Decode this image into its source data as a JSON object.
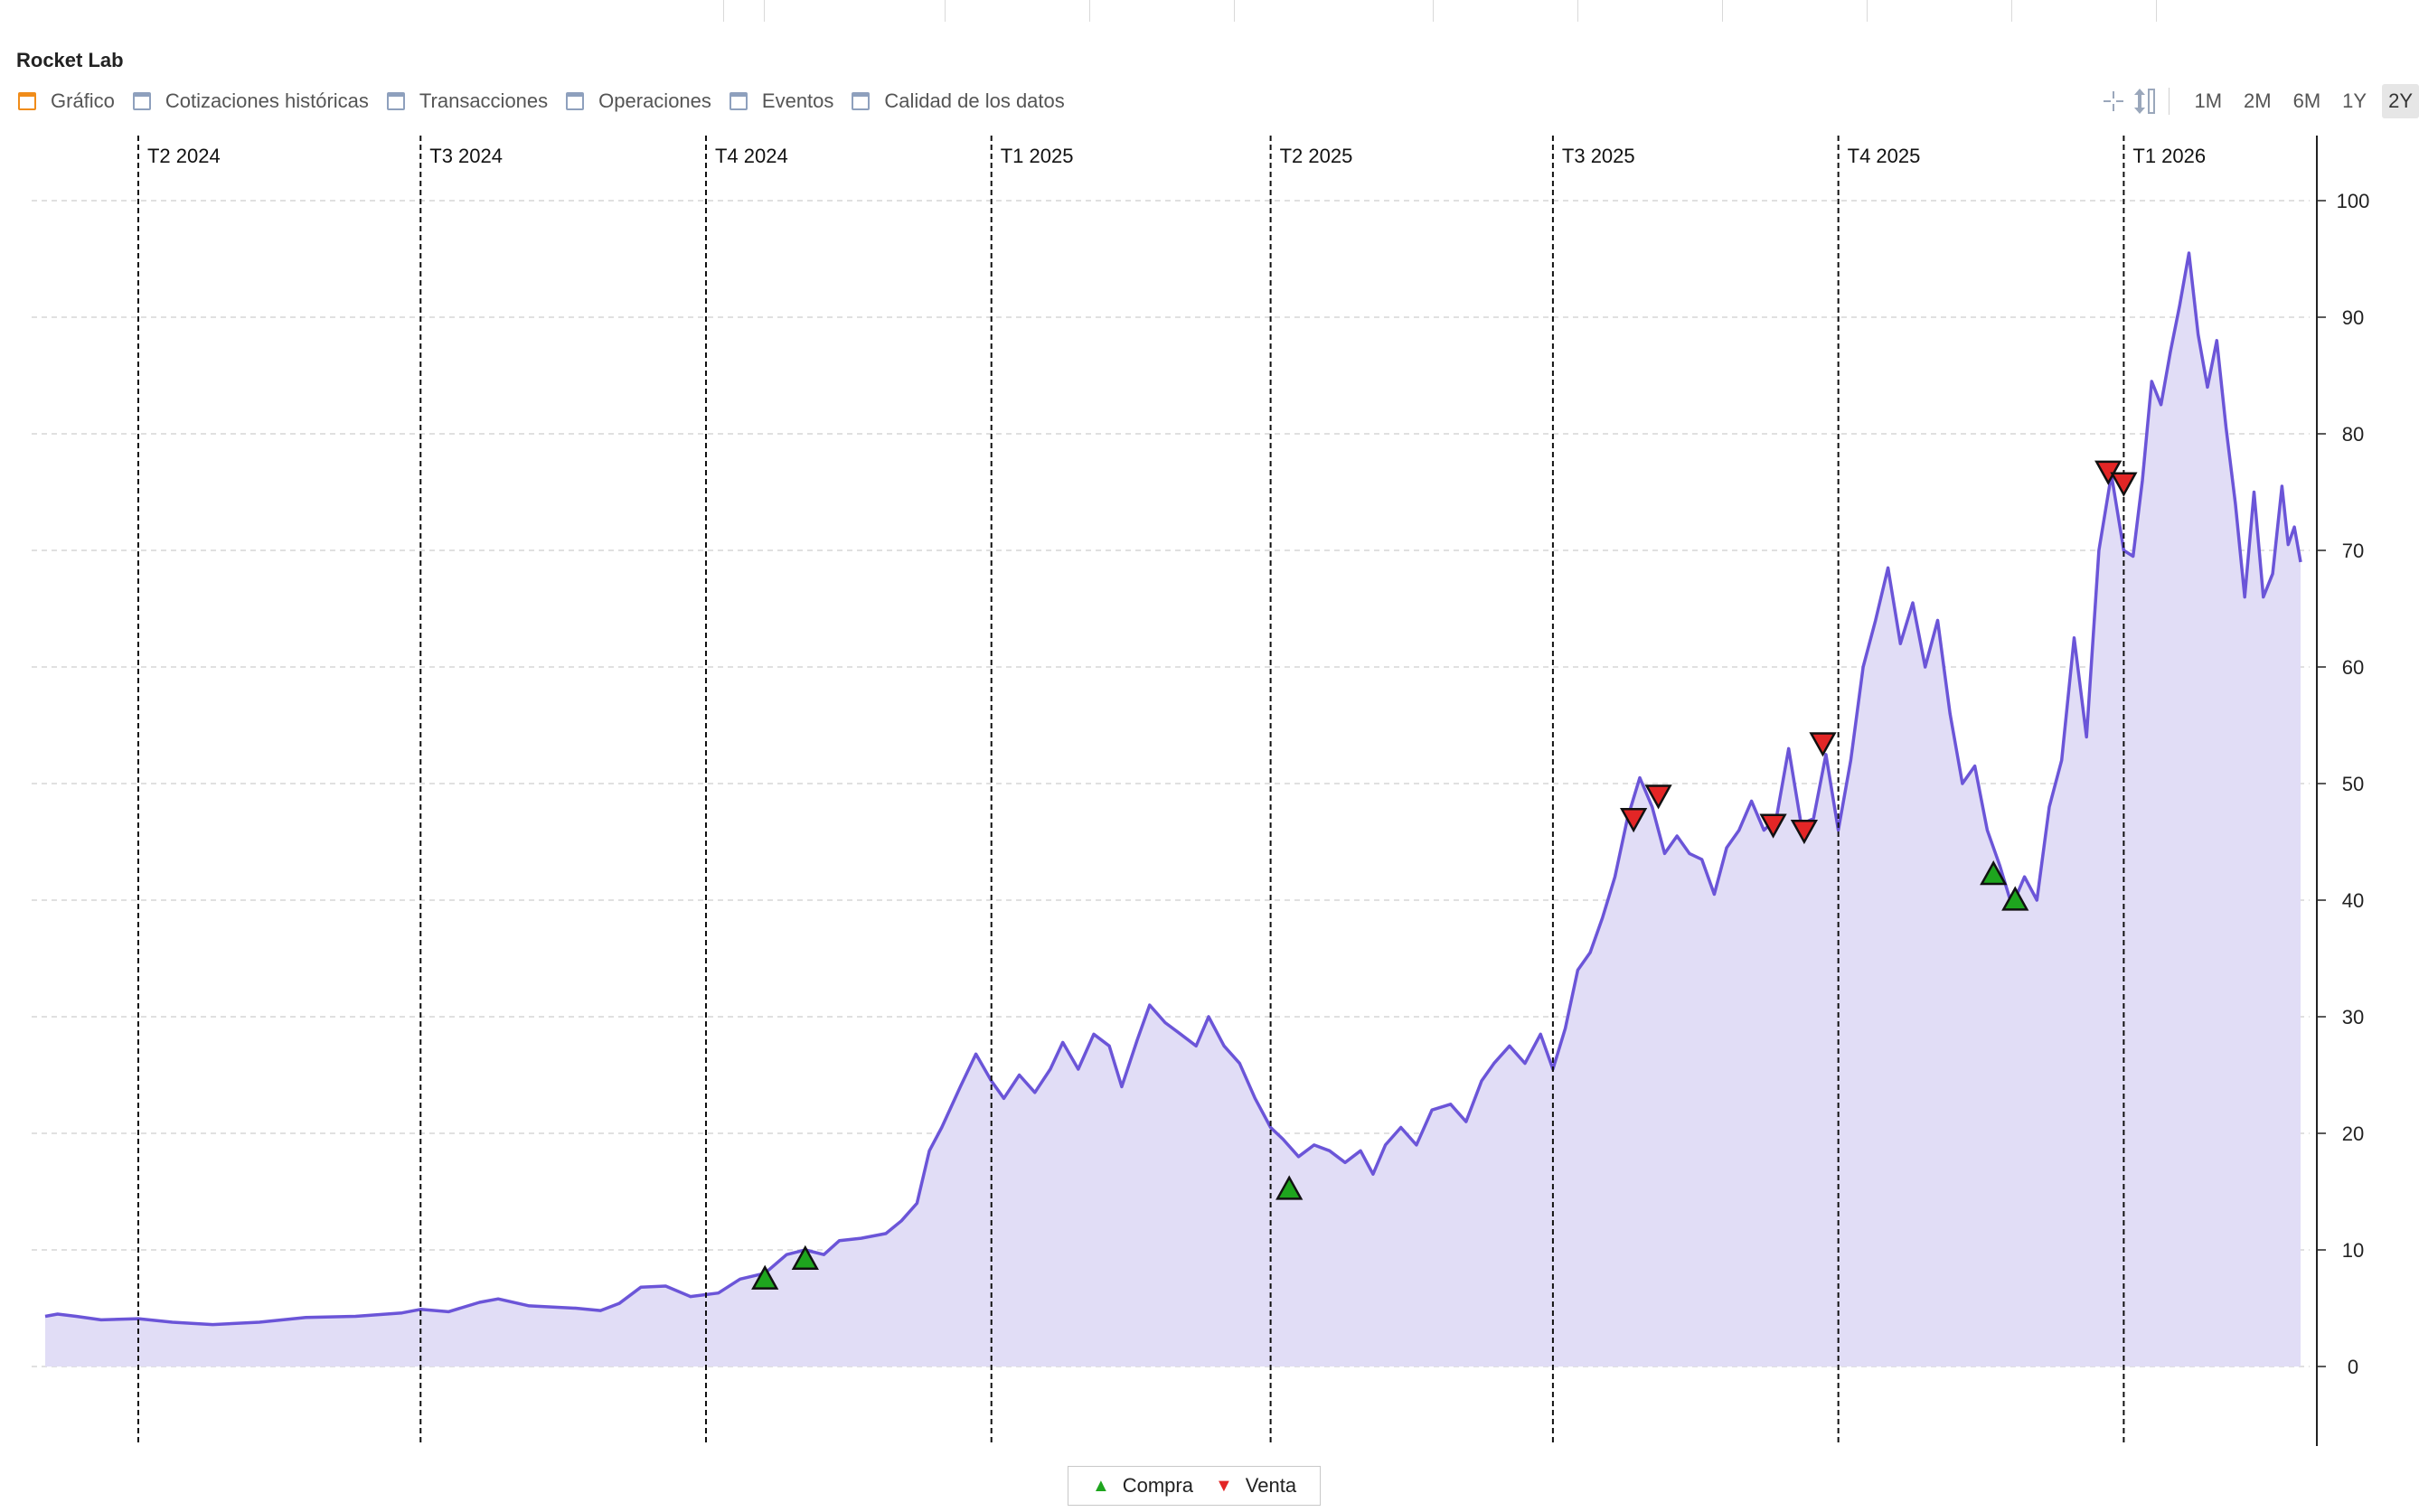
{
  "header": {
    "title": "Rocket Lab"
  },
  "tabs": [
    {
      "label": "Gráfico",
      "active": true
    },
    {
      "label": "Cotizaciones históricas",
      "active": false
    },
    {
      "label": "Transacciones",
      "active": false
    },
    {
      "label": "Operaciones",
      "active": false
    },
    {
      "label": "Eventos",
      "active": false
    },
    {
      "label": "Calidad de los datos",
      "active": false
    }
  ],
  "toolbar": {
    "icons": [
      "crosshair-icon",
      "vertical-resize-icon"
    ],
    "ranges": [
      {
        "label": "1M",
        "active": false
      },
      {
        "label": "2M",
        "active": false
      },
      {
        "label": "6M",
        "active": false
      },
      {
        "label": "1Y",
        "active": false
      },
      {
        "label": "2Y",
        "active": true
      }
    ]
  },
  "legend": {
    "buy_label": "Compra",
    "sell_label": "Venta"
  },
  "colors": {
    "line": "#6b55d8",
    "fill": "#e1ddf6",
    "buy": "#1ea51e",
    "sell": "#e32626",
    "active_tab_icon": "#f08c1a",
    "inactive_tab_icon": "#8ea0bd"
  },
  "chart_data": {
    "type": "area",
    "title": "",
    "xlabel": "",
    "ylabel": "",
    "x_range": [
      "2024-03-02",
      "2026-02-27"
    ],
    "ylim": [
      0,
      100
    ],
    "y_ticks": [
      0,
      10,
      20,
      30,
      40,
      50,
      60,
      70,
      80,
      90,
      100
    ],
    "y_axis_position": "right",
    "grid": true,
    "legend_position": "bottom-center",
    "quarter_markers": [
      {
        "label": "T2 2024",
        "date": "2024-04-01"
      },
      {
        "label": "T3 2024",
        "date": "2024-07-01"
      },
      {
        "label": "T4 2024",
        "date": "2024-10-01"
      },
      {
        "label": "T1 2025",
        "date": "2025-01-01"
      },
      {
        "label": "T2 2025",
        "date": "2025-04-01"
      },
      {
        "label": "T3 2025",
        "date": "2025-07-01"
      },
      {
        "label": "T4 2025",
        "date": "2025-10-01"
      },
      {
        "label": "T1 2026",
        "date": "2026-01-01"
      }
    ],
    "series": [
      {
        "points": [
          [
            "2024-03-02",
            4.3
          ],
          [
            "2024-03-06",
            4.5
          ],
          [
            "2024-03-12",
            4.3
          ],
          [
            "2024-03-20",
            4.0
          ],
          [
            "2024-04-01",
            4.1
          ],
          [
            "2024-04-12",
            3.8
          ],
          [
            "2024-04-25",
            3.6
          ],
          [
            "2024-05-10",
            3.8
          ],
          [
            "2024-05-25",
            4.2
          ],
          [
            "2024-06-10",
            4.3
          ],
          [
            "2024-06-25",
            4.6
          ],
          [
            "2024-07-01",
            4.9
          ],
          [
            "2024-07-10",
            4.7
          ],
          [
            "2024-07-20",
            5.5
          ],
          [
            "2024-07-26",
            5.8
          ],
          [
            "2024-08-05",
            5.2
          ],
          [
            "2024-08-20",
            5.0
          ],
          [
            "2024-08-28",
            4.8
          ],
          [
            "2024-09-03",
            5.4
          ],
          [
            "2024-09-10",
            6.8
          ],
          [
            "2024-09-18",
            6.9
          ],
          [
            "2024-09-26",
            6.0
          ],
          [
            "2024-10-05",
            6.3
          ],
          [
            "2024-10-12",
            7.5
          ],
          [
            "2024-10-20",
            8.0
          ],
          [
            "2024-10-27",
            9.6
          ],
          [
            "2024-11-02",
            10.0
          ],
          [
            "2024-11-08",
            9.6
          ],
          [
            "2024-11-13",
            10.8
          ],
          [
            "2024-11-20",
            11.0
          ],
          [
            "2024-11-28",
            11.4
          ],
          [
            "2024-12-03",
            12.5
          ],
          [
            "2024-12-08",
            14.0
          ],
          [
            "2024-12-12",
            18.5
          ],
          [
            "2024-12-16",
            20.5
          ],
          [
            "2024-12-22",
            24.0
          ],
          [
            "2024-12-27",
            26.8
          ],
          [
            "2025-01-01",
            24.5
          ],
          [
            "2025-01-05",
            23.0
          ],
          [
            "2025-01-10",
            25.0
          ],
          [
            "2025-01-15",
            23.5
          ],
          [
            "2025-01-20",
            25.5
          ],
          [
            "2025-01-24",
            27.8
          ],
          [
            "2025-01-29",
            25.5
          ],
          [
            "2025-02-03",
            28.5
          ],
          [
            "2025-02-08",
            27.5
          ],
          [
            "2025-02-12",
            24.0
          ],
          [
            "2025-02-17",
            28.0
          ],
          [
            "2025-02-21",
            31.0
          ],
          [
            "2025-02-26",
            29.5
          ],
          [
            "2025-03-03",
            28.5
          ],
          [
            "2025-03-08",
            27.5
          ],
          [
            "2025-03-12",
            30.0
          ],
          [
            "2025-03-17",
            27.5
          ],
          [
            "2025-03-22",
            26.0
          ],
          [
            "2025-03-27",
            23.0
          ],
          [
            "2025-04-01",
            20.5
          ],
          [
            "2025-04-05",
            19.5
          ],
          [
            "2025-04-10",
            18.0
          ],
          [
            "2025-04-15",
            19.0
          ],
          [
            "2025-04-20",
            18.5
          ],
          [
            "2025-04-25",
            17.5
          ],
          [
            "2025-04-30",
            18.5
          ],
          [
            "2025-05-04",
            16.5
          ],
          [
            "2025-05-08",
            19.0
          ],
          [
            "2025-05-13",
            20.5
          ],
          [
            "2025-05-18",
            19.0
          ],
          [
            "2025-05-23",
            22.0
          ],
          [
            "2025-05-29",
            22.5
          ],
          [
            "2025-06-03",
            21.0
          ],
          [
            "2025-06-08",
            24.5
          ],
          [
            "2025-06-12",
            26.0
          ],
          [
            "2025-06-17",
            27.5
          ],
          [
            "2025-06-22",
            26.0
          ],
          [
            "2025-06-27",
            28.5
          ],
          [
            "2025-07-01",
            25.5
          ],
          [
            "2025-07-05",
            29.0
          ],
          [
            "2025-07-09",
            34.0
          ],
          [
            "2025-07-13",
            35.5
          ],
          [
            "2025-07-17",
            38.5
          ],
          [
            "2025-07-21",
            42.0
          ],
          [
            "2025-07-25",
            47.0
          ],
          [
            "2025-07-29",
            50.5
          ],
          [
            "2025-08-02",
            48.0
          ],
          [
            "2025-08-06",
            44.0
          ],
          [
            "2025-08-10",
            45.5
          ],
          [
            "2025-08-14",
            44.0
          ],
          [
            "2025-08-18",
            43.5
          ],
          [
            "2025-08-22",
            40.5
          ],
          [
            "2025-08-26",
            44.5
          ],
          [
            "2025-08-30",
            46.0
          ],
          [
            "2025-09-03",
            48.5
          ],
          [
            "2025-09-07",
            46.0
          ],
          [
            "2025-09-11",
            47.0
          ],
          [
            "2025-09-15",
            53.0
          ],
          [
            "2025-09-19",
            46.5
          ],
          [
            "2025-09-23",
            47.0
          ],
          [
            "2025-09-27",
            52.5
          ],
          [
            "2025-10-01",
            46.0
          ],
          [
            "2025-10-05",
            52.0
          ],
          [
            "2025-10-09",
            60.0
          ],
          [
            "2025-10-13",
            64.0
          ],
          [
            "2025-10-17",
            68.5
          ],
          [
            "2025-10-21",
            62.0
          ],
          [
            "2025-10-25",
            65.5
          ],
          [
            "2025-10-29",
            60.0
          ],
          [
            "2025-11-02",
            64.0
          ],
          [
            "2025-11-06",
            56.0
          ],
          [
            "2025-11-10",
            50.0
          ],
          [
            "2025-11-14",
            51.5
          ],
          [
            "2025-11-18",
            46.0
          ],
          [
            "2025-11-22",
            43.0
          ],
          [
            "2025-11-26",
            39.5
          ],
          [
            "2025-11-30",
            42.0
          ],
          [
            "2025-12-04",
            40.0
          ],
          [
            "2025-12-08",
            48.0
          ],
          [
            "2025-12-12",
            52.0
          ],
          [
            "2025-12-16",
            62.5
          ],
          [
            "2025-12-20",
            54.0
          ],
          [
            "2025-12-24",
            70.0
          ],
          [
            "2025-12-28",
            76.5
          ],
          [
            "2026-01-01",
            70.0
          ],
          [
            "2026-01-04",
            69.5
          ],
          [
            "2026-01-07",
            76.0
          ],
          [
            "2026-01-10",
            84.5
          ],
          [
            "2026-01-13",
            82.5
          ],
          [
            "2026-01-16",
            87.0
          ],
          [
            "2026-01-19",
            91.0
          ],
          [
            "2026-01-22",
            95.5
          ],
          [
            "2026-01-25",
            88.5
          ],
          [
            "2026-01-28",
            84.0
          ],
          [
            "2026-01-31",
            88.0
          ],
          [
            "2026-02-03",
            80.5
          ],
          [
            "2026-02-06",
            74.0
          ],
          [
            "2026-02-09",
            66.0
          ],
          [
            "2026-02-12",
            75.0
          ],
          [
            "2026-02-15",
            66.0
          ],
          [
            "2026-02-18",
            68.0
          ],
          [
            "2026-02-21",
            75.5
          ],
          [
            "2026-02-23",
            70.5
          ],
          [
            "2026-02-25",
            72.0
          ],
          [
            "2026-02-27",
            69.0
          ]
        ]
      }
    ],
    "trades": [
      {
        "type": "buy",
        "date": "2024-10-20",
        "value": 7.5
      },
      {
        "type": "buy",
        "date": "2024-11-02",
        "value": 9.2
      },
      {
        "type": "buy",
        "date": "2025-04-07",
        "value": 15.2
      },
      {
        "type": "sell",
        "date": "2025-07-27",
        "value": 47.0
      },
      {
        "type": "sell",
        "date": "2025-08-04",
        "value": 49.0
      },
      {
        "type": "sell",
        "date": "2025-09-10",
        "value": 46.5
      },
      {
        "type": "sell",
        "date": "2025-09-20",
        "value": 46.0
      },
      {
        "type": "sell",
        "date": "2025-09-26",
        "value": 53.5
      },
      {
        "type": "buy",
        "date": "2025-11-20",
        "value": 42.2
      },
      {
        "type": "buy",
        "date": "2025-11-27",
        "value": 40.0
      },
      {
        "type": "sell",
        "date": "2025-12-27",
        "value": 76.8
      },
      {
        "type": "sell",
        "date": "2026-01-01",
        "value": 75.8
      }
    ]
  }
}
